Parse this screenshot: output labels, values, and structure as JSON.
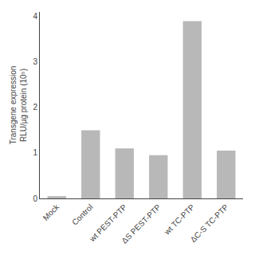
{
  "chart_data": {
    "type": "bar",
    "categories": [
      "Mock",
      "Control",
      "wt PEST-PTP",
      "ΔS PEST-PTP",
      "wt TC-PTP",
      "ΔC-S TC-PTP"
    ],
    "values": [
      0.05,
      1.5,
      1.1,
      0.95,
      3.9,
      1.05
    ],
    "color": "#b8b8b8",
    "ylabel": "Transgene expression\nRLU/µg protein (10⁵)",
    "ylim": [
      0,
      4.1
    ],
    "yticks": [
      0,
      1,
      2,
      3,
      4
    ],
    "grid": false
  }
}
